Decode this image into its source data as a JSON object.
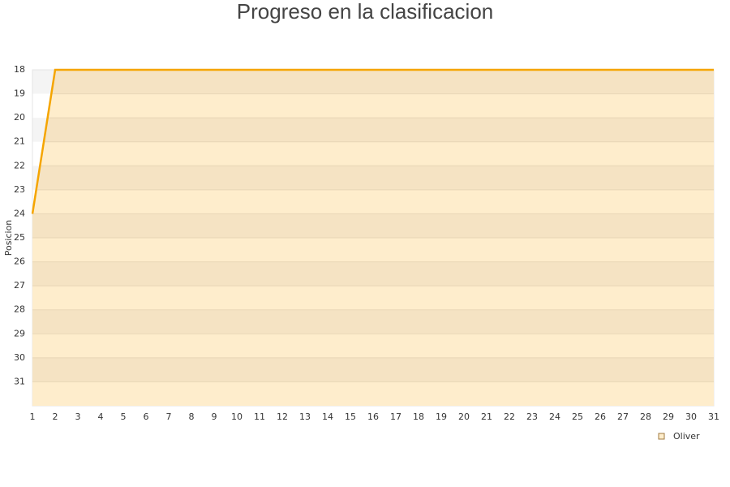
{
  "chart_data": {
    "type": "line",
    "title": "Progreso en la clasificacion",
    "y_label": "Posicion",
    "x": [
      1,
      2,
      3,
      4,
      5,
      6,
      7,
      8,
      9,
      10,
      11,
      12,
      13,
      14,
      15,
      16,
      17,
      18,
      19,
      20,
      21,
      22,
      23,
      24,
      25,
      26,
      27,
      28,
      29,
      30,
      31
    ],
    "xlim": [
      1,
      31
    ],
    "xticks": [
      1,
      2,
      3,
      4,
      5,
      6,
      7,
      8,
      9,
      10,
      11,
      12,
      13,
      14,
      15,
      16,
      17,
      18,
      19,
      20,
      21,
      22,
      23,
      24,
      25,
      26,
      27,
      28,
      29,
      30,
      31
    ],
    "ylim": [
      32,
      18
    ],
    "yticks": [
      18,
      19,
      20,
      21,
      22,
      23,
      24,
      25,
      26,
      27,
      28,
      29,
      30,
      31
    ],
    "series": [
      {
        "name": "Oliver",
        "color": "#f5a500",
        "values": [
          24,
          18,
          18,
          18,
          18,
          18,
          18,
          18,
          18,
          18,
          18,
          18,
          18,
          18,
          18,
          18,
          18,
          18,
          18,
          18,
          18,
          18,
          18,
          18,
          18,
          18,
          18,
          18,
          18,
          18,
          18
        ]
      }
    ],
    "legend": "bottom-right"
  }
}
